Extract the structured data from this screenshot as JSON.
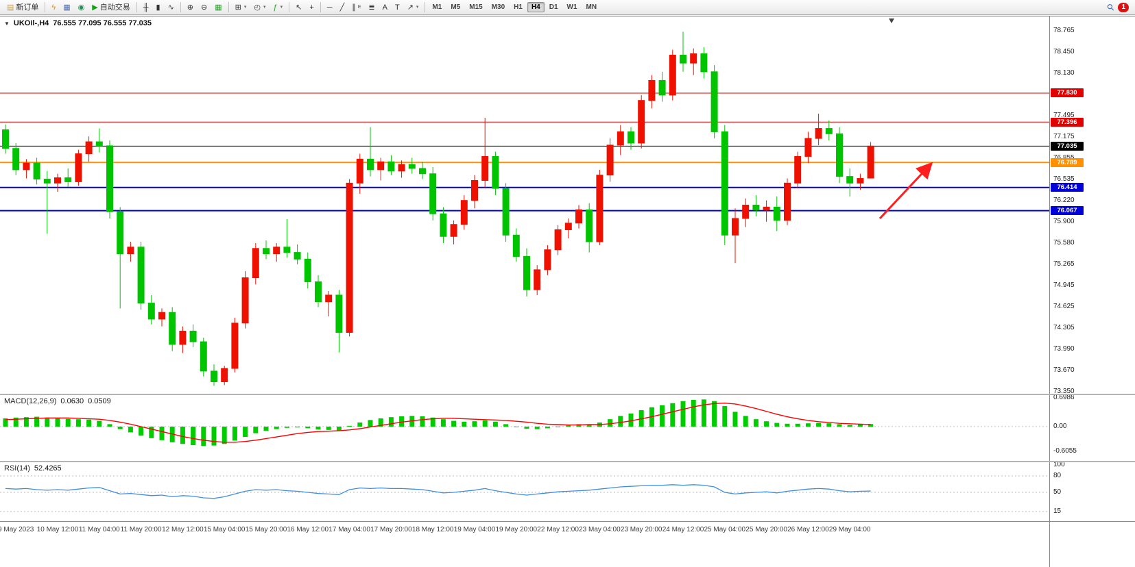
{
  "window": {
    "app_width": 1655,
    "app_height": 827
  },
  "colors": {
    "up": "#EE1100",
    "down": "#00C400",
    "macd_hist": "#00CC00",
    "macd_signal": "#FF0000",
    "rsi_line": "#3E8EDE",
    "arrow": "#FF1E1E",
    "grid_dotted": "#b9b9b9"
  },
  "toolbar": {
    "items": [
      {
        "name": "new-order",
        "label": "新订单",
        "glyph": "▤",
        "color": "#caa03c"
      },
      {
        "sep": true
      },
      {
        "name": "charts-toggle",
        "glyph": "ϟ",
        "color": "#d69a00"
      },
      {
        "name": "market-watch",
        "glyph": "▦",
        "color": "#4a6fb5"
      },
      {
        "name": "navigator",
        "glyph": "◉",
        "color": "#2e8b57"
      },
      {
        "name": "autotrade",
        "label": "自动交易",
        "glyph": "▶",
        "color": "#15a015"
      },
      {
        "sep": true
      },
      {
        "name": "bar-chart-mode",
        "glyph": "╫"
      },
      {
        "name": "candlestick-mode",
        "glyph": "▮"
      },
      {
        "name": "line-chart-mode",
        "glyph": "∿"
      },
      {
        "sep": true
      },
      {
        "name": "zoom-in",
        "glyph": "⊕"
      },
      {
        "name": "zoom-out",
        "glyph": "⊖"
      },
      {
        "name": "tile-windows",
        "glyph": "▦",
        "color": "#2aa02a"
      },
      {
        "sep": true
      },
      {
        "name": "new-chart",
        "glyph": "⊞",
        "caret": true
      },
      {
        "name": "profiles",
        "glyph": "◴",
        "caret": true
      },
      {
        "name": "indicators",
        "glyph": "ƒ",
        "color": "#2aa02a",
        "caret": true
      },
      {
        "sep": true
      },
      {
        "name": "cursor",
        "glyph": "↖"
      },
      {
        "name": "crosshair",
        "glyph": "+"
      },
      {
        "sep": true
      },
      {
        "name": "horizontal-line-tool",
        "glyph": "─"
      },
      {
        "name": "trendline-tool",
        "glyph": "╱"
      },
      {
        "name": "equidistant-channel-tool",
        "glyph": "∥",
        "sub": "E"
      },
      {
        "name": "fibonacci-tool",
        "glyph": "≣"
      },
      {
        "name": "text-tool",
        "glyph": "A"
      },
      {
        "name": "text-label-tool",
        "glyph": "T"
      },
      {
        "name": "arrows-tool",
        "glyph": "↗",
        "caret": true
      },
      {
        "sep": true
      }
    ],
    "periods": [
      "M1",
      "M5",
      "M15",
      "M30",
      "H1",
      "H4",
      "D1",
      "W1",
      "MN"
    ],
    "active_period": "H4",
    "right_items": [
      {
        "name": "search-symbol",
        "glyph": "⚲"
      },
      {
        "name": "alerts",
        "label": "1",
        "badge": true
      }
    ]
  },
  "chart": {
    "dropdown_glyph": "▼",
    "title_symbol": "UKOil-,H4",
    "title_ohlc": "76.555 77.095 76.555 77.035",
    "price_axis": {
      "ticks": [
        "78.765",
        "78.450",
        "78.130",
        "77.810",
        "77.495",
        "77.175",
        "76.855",
        "76.535",
        "76.220",
        "75.900",
        "75.580",
        "75.265",
        "74.945",
        "74.625",
        "74.305",
        "73.990",
        "73.670",
        "73.350"
      ]
    }
  },
  "chart_data": {
    "type": "candlestick",
    "symbol": "UKOil-",
    "timeframe": "H4",
    "current_bar": {
      "open": 76.555,
      "high": 77.095,
      "low": 76.555,
      "close": 77.035
    },
    "price_range": [
      73.32,
      78.98
    ],
    "first_label_index": 1,
    "label_step": 4,
    "x_labels": [
      "9 May 2023",
      "10 May 12:00",
      "11 May 04:00",
      "11 May 20:00",
      "12 May 12:00",
      "15 May 04:00",
      "15 May 20:00",
      "16 May 12:00",
      "17 May 04:00",
      "17 May 20:00",
      "18 May 12:00",
      "19 May 04:00",
      "19 May 20:00",
      "22 May 12:00",
      "23 May 04:00",
      "23 May 20:00",
      "24 May 12:00",
      "25 May 04:00",
      "25 May 20:00",
      "26 May 12:00",
      "29 May 04:00"
    ],
    "candles": [
      [
        77.28,
        77.36,
        76.92,
        77.0
      ],
      [
        77.0,
        77.08,
        76.6,
        76.68
      ],
      [
        76.68,
        76.84,
        76.55,
        76.78
      ],
      [
        76.78,
        76.86,
        76.46,
        76.54
      ],
      [
        76.54,
        76.66,
        75.72,
        76.48
      ],
      [
        76.48,
        76.62,
        76.35,
        76.56
      ],
      [
        76.56,
        76.7,
        76.42,
        76.5
      ],
      [
        76.5,
        76.98,
        76.44,
        76.92
      ],
      [
        76.92,
        77.18,
        76.8,
        77.1
      ],
      [
        77.1,
        77.3,
        76.94,
        77.04
      ],
      [
        77.04,
        77.12,
        75.95,
        76.05
      ],
      [
        76.05,
        76.12,
        74.6,
        75.42
      ],
      [
        75.42,
        75.6,
        75.3,
        75.52
      ],
      [
        75.52,
        75.6,
        74.58,
        74.68
      ],
      [
        74.68,
        74.8,
        74.36,
        74.44
      ],
      [
        74.44,
        74.6,
        74.33,
        74.54
      ],
      [
        74.54,
        74.62,
        73.96,
        74.06
      ],
      [
        74.06,
        74.33,
        73.93,
        74.26
      ],
      [
        74.26,
        74.36,
        74.02,
        74.1
      ],
      [
        74.1,
        74.16,
        73.58,
        73.66
      ],
      [
        73.66,
        73.76,
        73.44,
        73.5
      ],
      [
        73.5,
        73.74,
        73.45,
        73.7
      ],
      [
        73.7,
        74.46,
        73.64,
        74.38
      ],
      [
        74.38,
        75.16,
        74.3,
        75.06
      ],
      [
        75.06,
        75.58,
        74.96,
        75.5
      ],
      [
        75.5,
        75.62,
        75.34,
        75.42
      ],
      [
        75.42,
        75.58,
        75.3,
        75.52
      ],
      [
        75.52,
        75.94,
        75.36,
        75.44
      ],
      [
        75.44,
        75.56,
        75.26,
        75.34
      ],
      [
        75.34,
        75.44,
        74.9,
        75.0
      ],
      [
        75.0,
        75.1,
        74.62,
        74.7
      ],
      [
        74.7,
        74.86,
        74.48,
        74.8
      ],
      [
        74.8,
        74.88,
        73.94,
        74.24
      ],
      [
        74.24,
        76.54,
        74.18,
        76.48
      ],
      [
        76.48,
        76.92,
        76.32,
        76.84
      ],
      [
        76.84,
        77.32,
        76.58,
        76.68
      ],
      [
        76.68,
        76.86,
        76.52,
        76.8
      ],
      [
        76.8,
        76.9,
        76.6,
        76.66
      ],
      [
        76.66,
        76.82,
        76.56,
        76.76
      ],
      [
        76.76,
        76.86,
        76.62,
        76.7
      ],
      [
        76.7,
        76.8,
        76.54,
        76.62
      ],
      [
        76.62,
        76.72,
        75.92,
        76.02
      ],
      [
        76.02,
        76.12,
        75.58,
        75.68
      ],
      [
        75.68,
        75.92,
        75.56,
        75.86
      ],
      [
        75.86,
        76.3,
        75.78,
        76.22
      ],
      [
        76.22,
        76.6,
        76.1,
        76.52
      ],
      [
        76.52,
        77.46,
        76.4,
        76.88
      ],
      [
        76.88,
        76.95,
        76.3,
        76.4
      ],
      [
        76.4,
        76.48,
        75.6,
        75.7
      ],
      [
        75.7,
        75.8,
        75.3,
        75.38
      ],
      [
        75.38,
        75.5,
        74.78,
        74.88
      ],
      [
        74.88,
        75.25,
        74.8,
        75.18
      ],
      [
        75.18,
        75.55,
        75.1,
        75.48
      ],
      [
        75.48,
        75.85,
        75.4,
        75.78
      ],
      [
        75.78,
        75.95,
        75.65,
        75.88
      ],
      [
        75.88,
        76.15,
        75.8,
        76.08
      ],
      [
        76.08,
        76.18,
        75.44,
        75.6
      ],
      [
        75.6,
        76.68,
        75.55,
        76.6
      ],
      [
        76.6,
        77.15,
        76.5,
        77.05
      ],
      [
        77.05,
        77.35,
        76.9,
        77.25
      ],
      [
        77.25,
        77.32,
        76.98,
        77.08
      ],
      [
        77.08,
        77.8,
        77.0,
        77.72
      ],
      [
        77.72,
        78.1,
        77.6,
        78.02
      ],
      [
        78.02,
        78.15,
        77.7,
        77.8
      ],
      [
        77.8,
        78.48,
        77.72,
        78.4
      ],
      [
        78.4,
        78.75,
        78.15,
        78.28
      ],
      [
        78.28,
        78.5,
        78.1,
        78.42
      ],
      [
        78.42,
        78.52,
        78.05,
        78.15
      ],
      [
        78.15,
        78.25,
        77.15,
        77.25
      ],
      [
        77.25,
        77.35,
        75.55,
        75.7
      ],
      [
        75.7,
        76.1,
        75.28,
        75.95
      ],
      [
        75.95,
        76.25,
        75.82,
        76.15
      ],
      [
        76.15,
        76.3,
        75.98,
        76.08
      ],
      [
        76.08,
        76.22,
        75.9,
        76.12
      ],
      [
        76.12,
        76.28,
        75.76,
        75.92
      ],
      [
        75.92,
        76.55,
        75.85,
        76.48
      ],
      [
        76.48,
        76.95,
        76.4,
        76.88
      ],
      [
        76.88,
        77.25,
        76.78,
        77.15
      ],
      [
        77.15,
        77.52,
        77.05,
        77.3
      ],
      [
        77.3,
        77.42,
        77.12,
        77.22
      ],
      [
        77.22,
        77.32,
        76.48,
        76.58
      ],
      [
        76.58,
        76.7,
        76.28,
        76.48
      ],
      [
        76.48,
        76.62,
        76.38,
        76.55
      ],
      [
        76.555,
        77.095,
        76.555,
        77.035
      ]
    ],
    "horizontal_lines": [
      {
        "price": 77.83,
        "badge": "77.830",
        "color": "#E00000",
        "width": 1
      },
      {
        "price": 77.396,
        "badge": "77.396",
        "color": "#E00000",
        "width": 1
      },
      {
        "price": 77.035,
        "badge": "77.035",
        "color": "#000000",
        "width": 1
      },
      {
        "price": 76.789,
        "badge": "76.789",
        "color": "#FF9000",
        "width": 2
      },
      {
        "price": 76.414,
        "badge": "76.414",
        "color": "#0000D8",
        "width": 2
      },
      {
        "price": 76.067,
        "badge": "76.067",
        "color": "#0000D8",
        "width": 2
      }
    ],
    "macd": {
      "name": "MACD(12,26,9)",
      "value_main": "0.0630",
      "value_signal": "0.0509",
      "scale": {
        "labels": [
          "0.6986",
          "0.00",
          "-0.6055"
        ],
        "values": [
          0.6986,
          0,
          -0.6055
        ]
      },
      "histogram": [
        0.2,
        0.22,
        0.23,
        0.24,
        0.22,
        0.21,
        0.19,
        0.18,
        0.17,
        0.14,
        0.06,
        -0.06,
        -0.14,
        -0.22,
        -0.28,
        -0.33,
        -0.38,
        -0.42,
        -0.45,
        -0.47,
        -0.46,
        -0.42,
        -0.34,
        -0.25,
        -0.16,
        -0.1,
        -0.06,
        -0.03,
        -0.02,
        -0.04,
        -0.07,
        -0.08,
        -0.1,
        0.02,
        0.1,
        0.16,
        0.2,
        0.23,
        0.25,
        0.26,
        0.25,
        0.22,
        0.18,
        0.14,
        0.12,
        0.13,
        0.15,
        0.12,
        0.06,
        0.0,
        -0.05,
        -0.06,
        -0.04,
        0.0,
        0.04,
        0.06,
        0.05,
        0.1,
        0.18,
        0.26,
        0.32,
        0.4,
        0.47,
        0.52,
        0.57,
        0.62,
        0.65,
        0.66,
        0.62,
        0.5,
        0.36,
        0.26,
        0.18,
        0.13,
        0.09,
        0.07,
        0.07,
        0.08,
        0.09,
        0.08,
        0.06,
        0.04,
        0.05,
        0.063
      ],
      "signal": [
        0.17,
        0.18,
        0.19,
        0.2,
        0.21,
        0.21,
        0.21,
        0.2,
        0.19,
        0.18,
        0.15,
        0.11,
        0.06,
        0.0,
        -0.06,
        -0.12,
        -0.18,
        -0.24,
        -0.29,
        -0.33,
        -0.36,
        -0.38,
        -0.38,
        -0.36,
        -0.33,
        -0.29,
        -0.25,
        -0.21,
        -0.17,
        -0.14,
        -0.12,
        -0.11,
        -0.1,
        -0.08,
        -0.05,
        -0.01,
        0.03,
        0.07,
        0.11,
        0.14,
        0.17,
        0.19,
        0.2,
        0.2,
        0.19,
        0.18,
        0.17,
        0.16,
        0.15,
        0.13,
        0.11,
        0.08,
        0.06,
        0.05,
        0.04,
        0.04,
        0.05,
        0.05,
        0.07,
        0.1,
        0.14,
        0.19,
        0.24,
        0.3,
        0.36,
        0.42,
        0.48,
        0.53,
        0.56,
        0.57,
        0.55,
        0.5,
        0.44,
        0.37,
        0.3,
        0.24,
        0.19,
        0.15,
        0.12,
        0.1,
        0.08,
        0.07,
        0.06,
        0.051
      ]
    },
    "rsi": {
      "name": "RSI(14)",
      "value": "52.4265",
      "scale": {
        "labels": [
          "100",
          "80",
          "50",
          "15"
        ],
        "values": [
          100,
          80,
          50,
          15
        ]
      },
      "levels": [
        80,
        50,
        15
      ],
      "values": [
        57,
        56,
        57,
        55,
        54,
        55,
        54,
        56,
        58,
        59,
        53,
        47,
        48,
        46,
        44,
        45,
        42,
        44,
        43,
        40,
        39,
        42,
        47,
        52,
        55,
        54,
        55,
        53,
        52,
        50,
        48,
        47,
        46,
        55,
        58,
        57,
        58,
        57,
        57,
        56,
        55,
        52,
        49,
        50,
        52,
        54,
        57,
        53,
        50,
        47,
        45,
        47,
        49,
        51,
        52,
        53,
        54,
        56,
        58,
        60,
        61,
        62,
        63,
        63,
        64,
        63,
        64,
        63,
        60,
        50,
        47,
        49,
        50,
        51,
        49,
        52,
        54,
        56,
        57,
        56,
        53,
        51,
        52,
        52.4
      ]
    },
    "annotation_arrow": {
      "from": [
        1283,
        295
      ],
      "to": [
        1356,
        217
      ],
      "color": "#FF1E1E"
    }
  }
}
